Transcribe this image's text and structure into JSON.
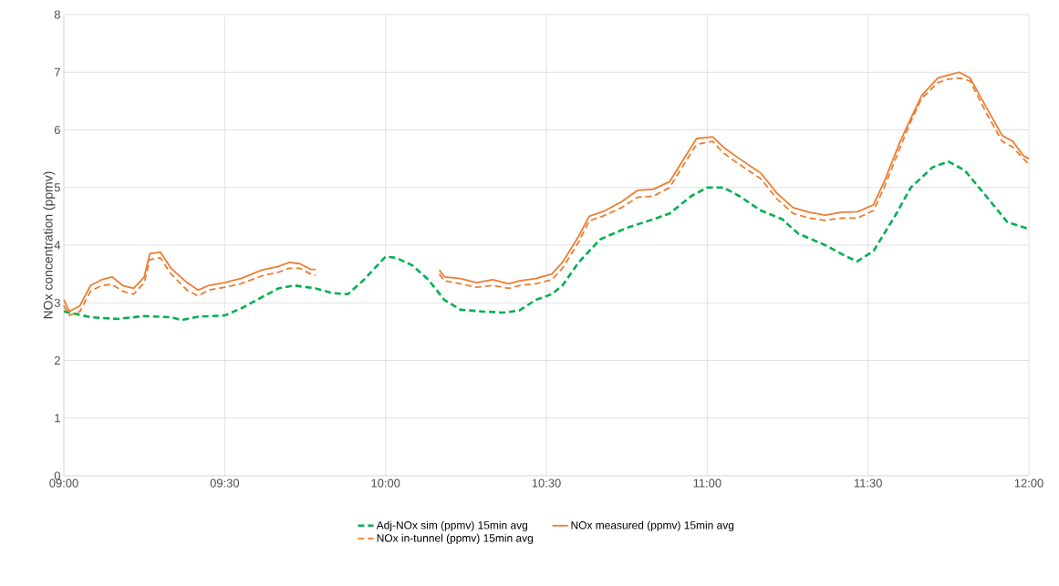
{
  "chart_data": {
    "type": "line",
    "ylabel": "NOx concentration (ppmv)",
    "xlim": [
      9,
      12
    ],
    "ylim": [
      0,
      8
    ],
    "xticks": [
      {
        "value": 9,
        "label": "09:00"
      },
      {
        "value": 9.5,
        "label": "09:30"
      },
      {
        "value": 10,
        "label": "10:00"
      },
      {
        "value": 10.5,
        "label": "10:30"
      },
      {
        "value": 11,
        "label": "11:00"
      },
      {
        "value": 11.5,
        "label": "11:30"
      },
      {
        "value": 12,
        "label": "12:00"
      }
    ],
    "yticks": [
      0,
      1,
      2,
      3,
      4,
      5,
      6,
      7,
      8
    ],
    "grid": true,
    "legend": "bottom",
    "marker": "none",
    "series": [
      {
        "name": "Adj-NOx sim (ppmv) 15min avg",
        "color": "#00b050",
        "line_style": "dashed",
        "x": [
          9,
          9.083,
          9.167,
          9.25,
          9.333,
          9.367,
          9.417,
          9.5,
          9.55,
          9.617,
          9.667,
          9.717,
          9.783,
          9.833,
          9.883,
          9.933,
          10,
          10.033,
          10.083,
          10.133,
          10.183,
          10.233,
          10.3,
          10.367,
          10.417,
          10.467,
          10.517,
          10.55,
          10.6,
          10.667,
          10.75,
          10.833,
          10.883,
          10.95,
          11,
          11.05,
          11.1,
          11.167,
          11.233,
          11.283,
          11.367,
          11.433,
          11.467,
          11.517,
          11.583,
          11.633,
          11.7,
          11.75,
          11.8,
          11.867,
          11.933,
          12
        ],
        "values": [
          2.85,
          2.75,
          2.72,
          2.77,
          2.75,
          2.7,
          2.76,
          2.78,
          2.9,
          3.1,
          3.25,
          3.3,
          3.25,
          3.17,
          3.15,
          3.4,
          3.8,
          3.78,
          3.65,
          3.4,
          3.05,
          2.88,
          2.85,
          2.83,
          2.87,
          3.05,
          3.15,
          3.3,
          3.7,
          4.1,
          4.3,
          4.45,
          4.55,
          4.85,
          5.0,
          5.0,
          4.85,
          4.6,
          4.45,
          4.2,
          4.0,
          3.8,
          3.72,
          3.9,
          4.5,
          5.0,
          5.35,
          5.45,
          5.3,
          4.85,
          4.4,
          4.28
        ]
      },
      {
        "name": "NOx measured (ppmv) 15min avg",
        "color": "#ed7d31",
        "line_style": "solid",
        "x": [
          9,
          9.017,
          9.05,
          9.083,
          9.117,
          9.15,
          9.183,
          9.217,
          9.25,
          9.267,
          9.3,
          9.333,
          9.383,
          9.417,
          9.45,
          9.5,
          9.55,
          9.617,
          9.667,
          9.7,
          9.733,
          9.767,
          9.783,
          9.8,
          10.167,
          10.183,
          10.233,
          10.283,
          10.333,
          10.383,
          10.417,
          10.467,
          10.517,
          10.55,
          10.6,
          10.633,
          10.683,
          10.733,
          10.783,
          10.833,
          10.883,
          10.933,
          10.967,
          11.017,
          11.05,
          11.1,
          11.167,
          11.217,
          11.267,
          11.317,
          11.367,
          11.417,
          11.467,
          11.517,
          11.55,
          11.6,
          11.633,
          11.667,
          11.717,
          11.75,
          11.783,
          11.817,
          11.867,
          11.917,
          11.95,
          11.983,
          12
        ],
        "values": [
          3.05,
          2.85,
          2.95,
          3.3,
          3.4,
          3.45,
          3.3,
          3.25,
          3.45,
          3.85,
          3.88,
          3.6,
          3.35,
          3.22,
          3.3,
          3.35,
          3.42,
          3.57,
          3.63,
          3.7,
          3.68,
          3.58,
          3.58,
          null,
          3.57,
          3.45,
          3.42,
          3.35,
          3.4,
          3.33,
          3.38,
          3.42,
          3.5,
          3.7,
          4.15,
          4.5,
          4.6,
          4.75,
          4.95,
          4.97,
          5.1,
          5.55,
          5.85,
          5.88,
          5.7,
          5.5,
          5.25,
          4.9,
          4.65,
          4.57,
          4.52,
          4.57,
          4.58,
          4.7,
          5.1,
          5.8,
          6.2,
          6.6,
          6.9,
          6.95,
          7.0,
          6.9,
          6.4,
          5.9,
          5.8,
          5.55,
          5.5
        ]
      },
      {
        "name": "NOx in-tunnel (ppmv) 15min avg",
        "color": "#ed7d31",
        "line_style": "dashed",
        "x": [
          9,
          9.017,
          9.05,
          9.083,
          9.117,
          9.15,
          9.183,
          9.217,
          9.25,
          9.267,
          9.3,
          9.333,
          9.383,
          9.417,
          9.45,
          9.5,
          9.55,
          9.617,
          9.667,
          9.7,
          9.733,
          9.767,
          9.783,
          9.8,
          10.167,
          10.183,
          10.233,
          10.283,
          10.333,
          10.383,
          10.417,
          10.467,
          10.517,
          10.55,
          10.6,
          10.633,
          10.683,
          10.733,
          10.783,
          10.833,
          10.883,
          10.933,
          10.967,
          11.017,
          11.05,
          11.1,
          11.167,
          11.217,
          11.267,
          11.317,
          11.367,
          11.417,
          11.467,
          11.517,
          11.55,
          11.6,
          11.633,
          11.667,
          11.717,
          11.75,
          11.783,
          11.817,
          11.867,
          11.917,
          11.95,
          11.983,
          12
        ],
        "values": [
          2.95,
          2.78,
          2.85,
          3.2,
          3.3,
          3.32,
          3.2,
          3.15,
          3.35,
          3.75,
          3.78,
          3.5,
          3.22,
          3.12,
          3.22,
          3.27,
          3.33,
          3.47,
          3.53,
          3.6,
          3.6,
          3.5,
          3.48,
          null,
          3.5,
          3.38,
          3.33,
          3.27,
          3.3,
          3.25,
          3.3,
          3.33,
          3.4,
          3.6,
          4.05,
          4.42,
          4.52,
          4.65,
          4.83,
          4.85,
          5.0,
          5.45,
          5.75,
          5.8,
          5.6,
          5.4,
          5.15,
          4.8,
          4.55,
          4.47,
          4.43,
          4.47,
          4.47,
          4.6,
          5.0,
          5.7,
          6.15,
          6.55,
          6.82,
          6.88,
          6.9,
          6.85,
          6.3,
          5.8,
          5.7,
          5.5,
          5.4
        ]
      }
    ]
  }
}
